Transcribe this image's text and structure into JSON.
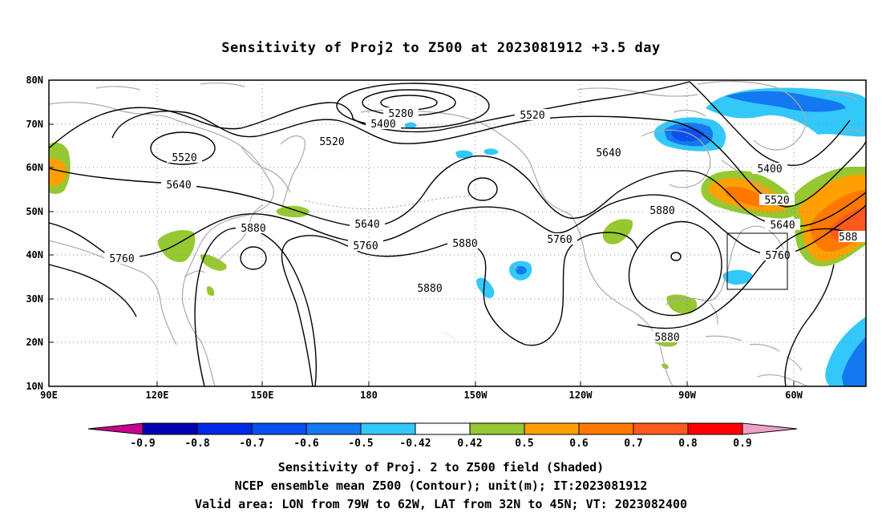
{
  "title": "Sensitivity of Proj2 to Z500 at 2023081912 +3.5 day",
  "map": {
    "lon_range": [
      "90E",
      "40W"
    ],
    "lat_range": [
      "10N",
      "80N"
    ],
    "lat_ticks": [
      "80N",
      "70N",
      "60N",
      "50N",
      "40N",
      "30N",
      "20N",
      "10N"
    ],
    "lon_ticks": [
      "90E",
      "120E",
      "150E",
      "180",
      "150W",
      "120W",
      "90W",
      "60W"
    ],
    "contour_labels": [
      {
        "text": "5280",
        "lon": -168,
        "lat": 73
      },
      {
        "text": "5400",
        "lon": -177,
        "lat": 71
      },
      {
        "text": "5520",
        "lon": -138,
        "lat": 73
      },
      {
        "text": "5520",
        "lon": 173,
        "lat": 66
      },
      {
        "text": "5520",
        "lon": 130,
        "lat": 62
      },
      {
        "text": "5640",
        "lon": 125,
        "lat": 57
      },
      {
        "text": "5640",
        "lon": -107,
        "lat": 63
      },
      {
        "text": "5400",
        "lon": -74,
        "lat": 58
      },
      {
        "text": "5520",
        "lon": -72,
        "lat": 52
      },
      {
        "text": "5640",
        "lon": -70,
        "lat": 48
      },
      {
        "text": "5880",
        "lon": -96,
        "lat": 50
      },
      {
        "text": "5640",
        "lon": 180,
        "lat": 47
      },
      {
        "text": "5880",
        "lon": 153,
        "lat": 46
      },
      {
        "text": "5760",
        "lon": 112,
        "lat": 41
      },
      {
        "text": "5760",
        "lon": 180,
        "lat": 42
      },
      {
        "text": "5880",
        "lon": -151,
        "lat": 43
      },
      {
        "text": "5760",
        "lon": -123,
        "lat": 44
      },
      {
        "text": "5760",
        "lon": -71,
        "lat": 40
      },
      {
        "text": "5880",
        "lon": -161,
        "lat": 32
      },
      {
        "text": "5880",
        "lon": -97,
        "lat": 22
      },
      {
        "text": "588",
        "lon": -57,
        "lat": 44
      }
    ],
    "valid_box": {
      "lon_w": -79,
      "lon_e": -62,
      "lat_s": 32,
      "lat_n": 45
    }
  },
  "colorbar": {
    "labels": [
      "-0.9",
      "-0.8",
      "-0.7",
      "-0.6",
      "-0.5",
      "-0.42",
      "0.42",
      "0.5",
      "0.6",
      "0.7",
      "0.8",
      "0.9"
    ],
    "colors": [
      "#0000b4",
      "#0028e6",
      "#0a50f0",
      "#1478f0",
      "#32c8fa",
      "#ffffff",
      "#96c832",
      "#ffa000",
      "#ff7800",
      "#ff5a1e",
      "#ff0000"
    ],
    "low_color": "#c8008c",
    "high_color": "#f0a0c8"
  },
  "captions": [
    "Sensitivity of Proj. 2 to Z500 field (Shaded)",
    "NCEP ensemble mean Z500 (Contour); unit(m); IT:2023081912",
    "Valid area: LON from 79W to 62W, LAT from 32N to 45N; VT: 2023082400"
  ]
}
